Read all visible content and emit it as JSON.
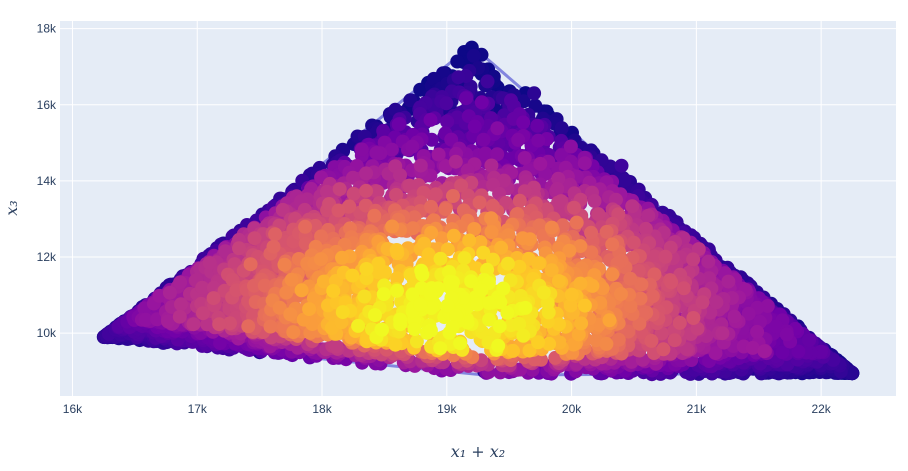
{
  "chart_data": {
    "type": "scatter",
    "xlabel": "x₁ + x₂",
    "ylabel": "x₃",
    "xlim": [
      15900,
      22600
    ],
    "ylim": [
      8350,
      18200
    ],
    "xticks": [
      {
        "value": 16000,
        "label": "16k"
      },
      {
        "value": 17000,
        "label": "17k"
      },
      {
        "value": 18000,
        "label": "18k"
      },
      {
        "value": 19000,
        "label": "19k"
      },
      {
        "value": 20000,
        "label": "20k"
      },
      {
        "value": 21000,
        "label": "21k"
      },
      {
        "value": 22000,
        "label": "22k"
      }
    ],
    "yticks": [
      {
        "value": 10000,
        "label": "10k"
      },
      {
        "value": 12000,
        "label": "12k"
      },
      {
        "value": 14000,
        "label": "14k"
      },
      {
        "value": 16000,
        "label": "16k"
      },
      {
        "value": 18000,
        "label": "18k"
      }
    ],
    "grid": true,
    "legend": "none",
    "colorscale": "Plasma",
    "colors": [
      "#0d0887",
      "#46039f",
      "#7201a8",
      "#9c179e",
      "#bd3786",
      "#d8576b",
      "#ed7953",
      "#fb9f3a",
      "#fdca26",
      "#f0f921"
    ],
    "background": "#e5ecf6",
    "outline_color": "#5a5ad6",
    "shape": {
      "description": "dense point cloud filling a triangle",
      "vertices": [
        [
          16250,
          9900
        ],
        [
          19200,
          17550
        ],
        [
          22250,
          8950
        ]
      ],
      "bottom_edge": [
        [
          16250,
          9900
        ],
        [
          19300,
          8900
        ],
        [
          22250,
          8950
        ]
      ],
      "density_peak": {
        "x": 19050,
        "y": 10700
      }
    },
    "points": [
      {
        "x": 16300,
        "y": 9900,
        "z": 0.02
      },
      {
        "x": 16700,
        "y": 10300,
        "z": 0.08
      },
      {
        "x": 17200,
        "y": 11700,
        "z": 0.05
      },
      {
        "x": 17800,
        "y": 13300,
        "z": 0.04
      },
      {
        "x": 18500,
        "y": 15300,
        "z": 0.05
      },
      {
        "x": 19200,
        "y": 17500,
        "z": 0.0
      },
      {
        "x": 19700,
        "y": 16300,
        "z": 0.06
      },
      {
        "x": 20400,
        "y": 14400,
        "z": 0.1
      },
      {
        "x": 21100,
        "y": 12200,
        "z": 0.08
      },
      {
        "x": 21700,
        "y": 10500,
        "z": 0.06
      },
      {
        "x": 22200,
        "y": 9000,
        "z": 0.02
      },
      {
        "x": 20800,
        "y": 9000,
        "z": 0.05
      },
      {
        "x": 19300,
        "y": 9000,
        "z": 0.04
      },
      {
        "x": 17500,
        "y": 9500,
        "z": 0.05
      },
      {
        "x": 18800,
        "y": 11000,
        "z": 0.8
      },
      {
        "x": 19100,
        "y": 10700,
        "z": 1.0
      },
      {
        "x": 19500,
        "y": 11800,
        "z": 0.75
      },
      {
        "x": 18300,
        "y": 12000,
        "z": 0.55
      },
      {
        "x": 19800,
        "y": 10500,
        "z": 0.6
      },
      {
        "x": 19000,
        "y": 13500,
        "z": 0.4
      }
    ]
  }
}
